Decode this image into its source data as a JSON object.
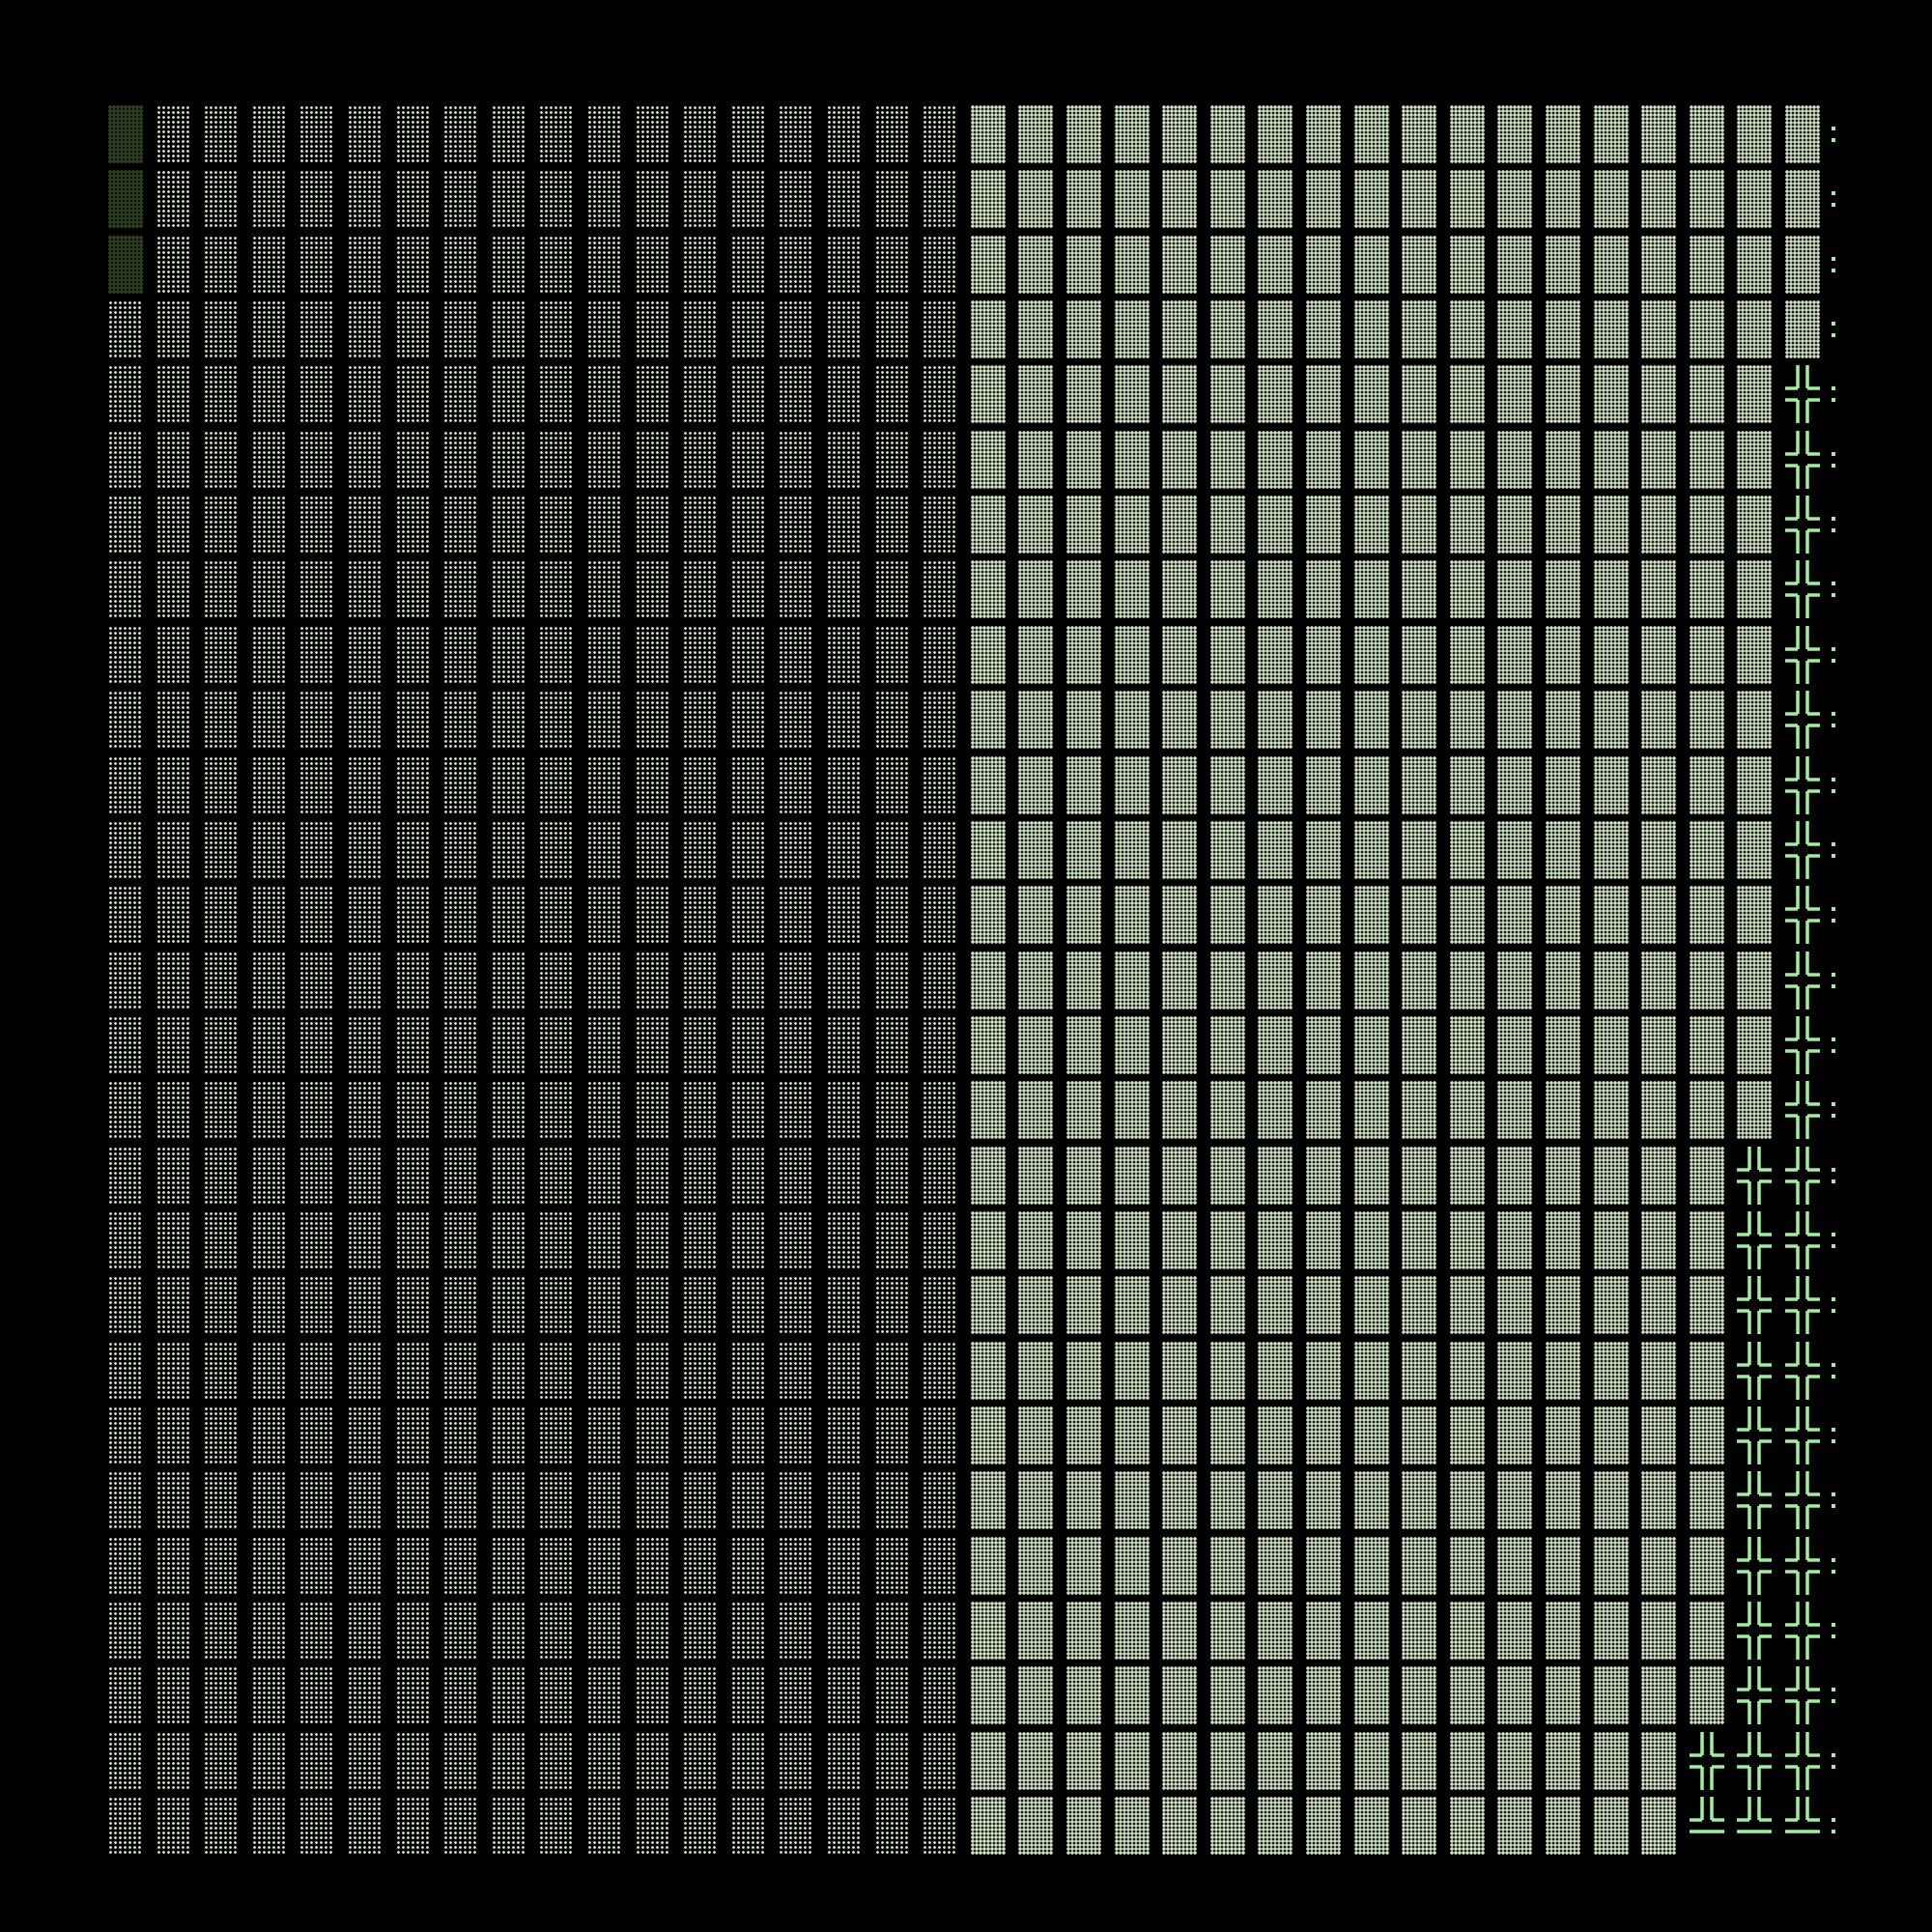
{
  "terminal": {
    "background": "#000000",
    "glyphs": {
      "light_shade": "░",
      "medium_shade": "▒",
      "box_cross": "╬",
      "box_up_horizontal": "╩",
      "row_end": ":"
    },
    "colors": {
      "light_shade": "#d4e6c8",
      "medium_shade": "#d4e6c8",
      "dim_block": "#2c3d22",
      "box_drawing": "#9ef09a",
      "row_end": "#9ef09a"
    },
    "rows": [
      "█░░░░░░░░░░░░░░░░░▒▒▒▒▒▒▒▒▒▒▒▒▒▒▒▒▒▒:",
      "█░░░░░░░░░░░░░░░░░▒▒▒▒▒▒▒▒▒▒▒▒▒▒▒▒▒▒:",
      "█░░░░░░░░░░░░░░░░░▒▒▒▒▒▒▒▒▒▒▒▒▒▒▒▒▒▒:",
      "░░░░░░░░░░░░░░░░░░▒▒▒▒▒▒▒▒▒▒▒▒▒▒▒▒▒▒:",
      "░░░░░░░░░░░░░░░░░░▒▒▒▒▒▒▒▒▒▒▒▒▒▒▒▒▒╬:",
      "░░░░░░░░░░░░░░░░░░▒▒▒▒▒▒▒▒▒▒▒▒▒▒▒▒▒╬:",
      "░░░░░░░░░░░░░░░░░░▒▒▒▒▒▒▒▒▒▒▒▒▒▒▒▒▒╬:",
      "░░░░░░░░░░░░░░░░░░▒▒▒▒▒▒▒▒▒▒▒▒▒▒▒▒▒╬:",
      "░░░░░░░░░░░░░░░░░░▒▒▒▒▒▒▒▒▒▒▒▒▒▒▒▒▒╬:",
      "░░░░░░░░░░░░░░░░░░▒▒▒▒▒▒▒▒▒▒▒▒▒▒▒▒▒╬:",
      "░░░░░░░░░░░░░░░░░░▒▒▒▒▒▒▒▒▒▒▒▒▒▒▒▒▒╬:",
      "░░░░░░░░░░░░░░░░░░▒▒▒▒▒▒▒▒▒▒▒▒▒▒▒▒▒╬:",
      "░░░░░░░░░░░░░░░░░░▒▒▒▒▒▒▒▒▒▒▒▒▒▒▒▒▒╬:",
      "░░░░░░░░░░░░░░░░░░▒▒▒▒▒▒▒▒▒▒▒▒▒▒▒▒▒╬:",
      "░░░░░░░░░░░░░░░░░░▒▒▒▒▒▒▒▒▒▒▒▒▒▒▒▒▒╬:",
      "░░░░░░░░░░░░░░░░░░▒▒▒▒▒▒▒▒▒▒▒▒▒▒▒▒▒╬:",
      "░░░░░░░░░░░░░░░░░░▒▒▒▒▒▒▒▒▒▒▒▒▒▒▒▒╬╬:",
      "░░░░░░░░░░░░░░░░░░▒▒▒▒▒▒▒▒▒▒▒▒▒▒▒▒╬╬:",
      "░░░░░░░░░░░░░░░░░░▒▒▒▒▒▒▒▒▒▒▒▒▒▒▒▒╬╬:",
      "░░░░░░░░░░░░░░░░░░▒▒▒▒▒▒▒▒▒▒▒▒▒▒▒▒╬╬:",
      "░░░░░░░░░░░░░░░░░░▒▒▒▒▒▒▒▒▒▒▒▒▒▒▒▒╬╬:",
      "░░░░░░░░░░░░░░░░░░▒▒▒▒▒▒▒▒▒▒▒▒▒▒▒▒╬╬:",
      "░░░░░░░░░░░░░░░░░░▒▒▒▒▒▒▒▒▒▒▒▒▒▒▒▒╬╬:",
      "░░░░░░░░░░░░░░░░░░▒▒▒▒▒▒▒▒▒▒▒▒▒▒▒▒╬╬:",
      "░░░░░░░░░░░░░░░░░░▒▒▒▒▒▒▒▒▒▒▒▒▒▒▒▒╬╬:",
      "░░░░░░░░░░░░░░░░░░▒▒▒▒▒▒▒▒▒▒▒▒▒▒▒╬╬╬:",
      "░░░░░░░░░░░░░░░░░░▒▒▒▒▒▒▒▒▒▒▒▒▒▒▒╩╩╩:"
    ]
  }
}
